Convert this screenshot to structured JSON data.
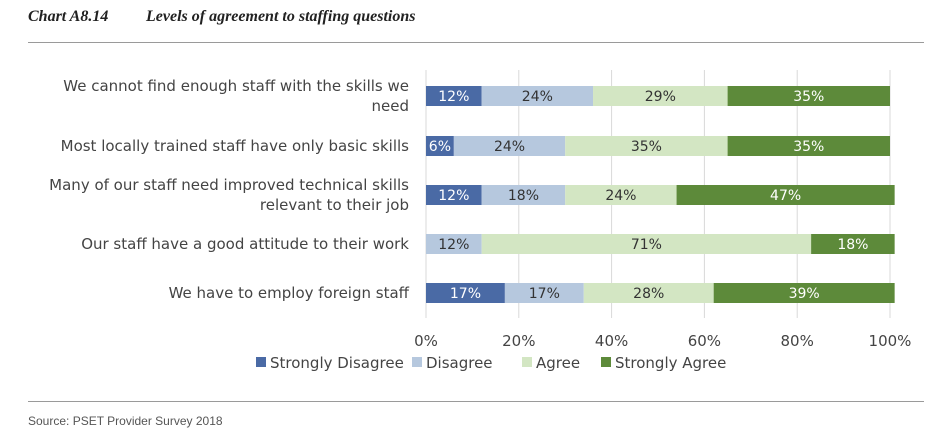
{
  "header": {
    "chart_number": "Chart A8.14",
    "title": "Levels of agreement to staffing questions"
  },
  "source": "Source: PSET Provider Survey 2018",
  "chart_data": {
    "type": "bar",
    "orientation": "horizontal",
    "stacked": "100%",
    "categories": [
      [
        "We cannot find enough staff with the skills we",
        "need"
      ],
      [
        "Most locally trained staff have only basic skills"
      ],
      [
        "Many of our staff need improved technical skills",
        "relevant to their job"
      ],
      [
        "Our staff have a good attitude to their work"
      ],
      [
        "We have to employ foreign staff"
      ]
    ],
    "series": [
      {
        "name": "Strongly Disagree",
        "color": "#4a6aa5",
        "label_color": "#ffffff",
        "values": [
          12,
          6,
          12,
          0,
          17
        ]
      },
      {
        "name": "Disagree",
        "color": "#b6c8de",
        "label_color": "#333333",
        "values": [
          24,
          24,
          18,
          12,
          17
        ]
      },
      {
        "name": "Agree",
        "color": "#d3e6c3",
        "label_color": "#333333",
        "values": [
          29,
          35,
          24,
          71,
          28
        ]
      },
      {
        "name": "Strongly Agree",
        "color": "#5d8a3a",
        "label_color": "#ffffff",
        "values": [
          35,
          35,
          47,
          18,
          39
        ]
      }
    ],
    "xlim": [
      0,
      100
    ],
    "xticks": [
      "0%",
      "20%",
      "40%",
      "60%",
      "80%",
      "100%"
    ],
    "xgrid": true,
    "legend_position": "bottom"
  }
}
